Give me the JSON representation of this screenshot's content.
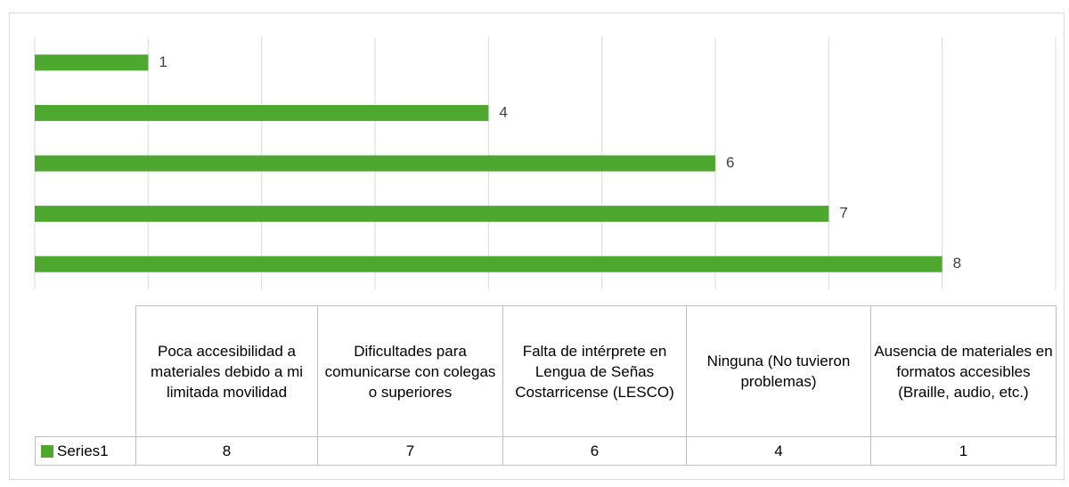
{
  "chart_data": {
    "type": "bar",
    "orientation": "horizontal",
    "categories": [
      "Poca accesibilidad a materiales debido a mi limitada movilidad",
      "Dificultades para comunicarse con colegas o superiores",
      "Falta de intérprete en Lengua de Señas Costarricense (LESCO)",
      "Ninguna (No tuvieron problemas)",
      "Ausencia de materiales en formatos accesibles (Braille, audio, etc.)"
    ],
    "series": [
      {
        "name": "Series1",
        "color": "#4ea72e",
        "values": [
          8,
          7,
          6,
          4,
          1
        ]
      }
    ],
    "xlim": [
      0,
      9
    ],
    "xticks": [
      0,
      1,
      2,
      3,
      4,
      5,
      6,
      7,
      8,
      9
    ],
    "grid": true,
    "data_table": true
  }
}
